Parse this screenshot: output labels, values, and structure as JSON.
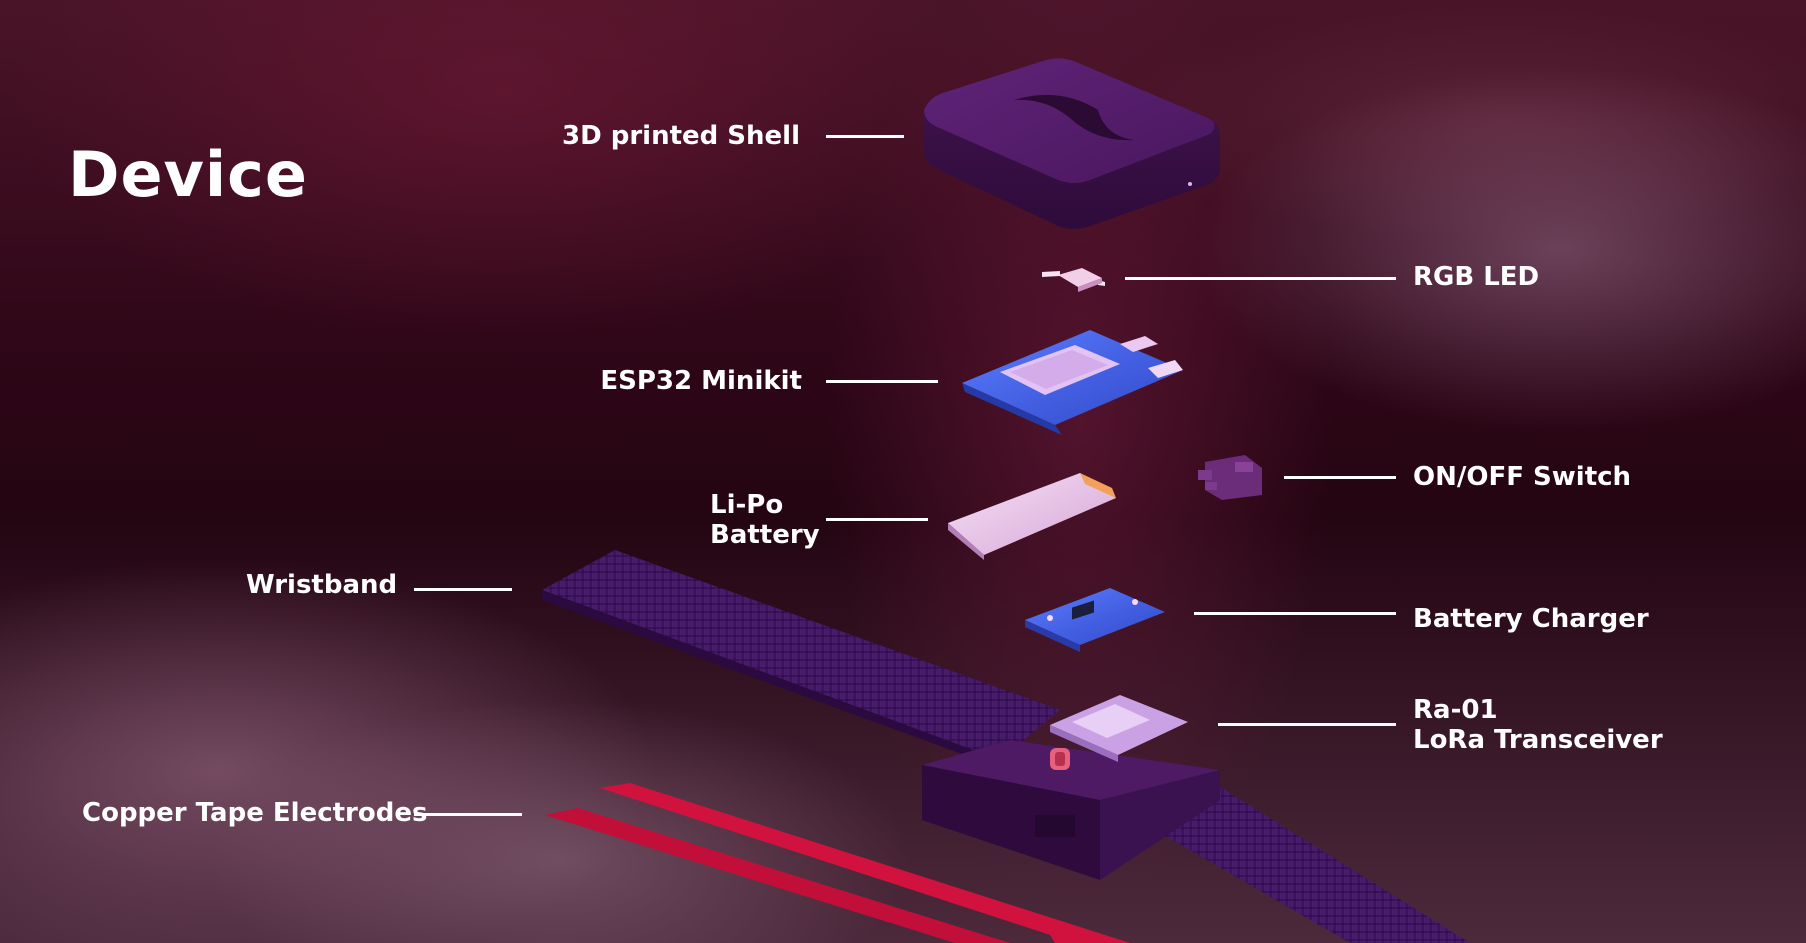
{
  "title": "Device",
  "colors": {
    "background": "#2a0716",
    "component_purple": "#4e1a63",
    "wristband_purple": "#3d165c",
    "pcb_blue": "#3a5ee0",
    "copper_tape_red": "#d1123f",
    "label_white": "#ffffff"
  },
  "components": {
    "shell": {
      "label": "3D printed Shell"
    },
    "rgb_led": {
      "label": "RGB LED"
    },
    "esp32": {
      "label": "ESP32 Minikit"
    },
    "on_off_switch": {
      "label": "ON/OFF Switch"
    },
    "battery": {
      "label_line1": "Li-Po",
      "label_line2": "Battery"
    },
    "wristband": {
      "label": "Wristband"
    },
    "battery_charger": {
      "label": "Battery Charger"
    },
    "lora": {
      "label_line1": "Ra-01",
      "label_line2": "LoRa Transceiver"
    },
    "copper_tape": {
      "label": "Copper Tape Electrodes"
    }
  }
}
